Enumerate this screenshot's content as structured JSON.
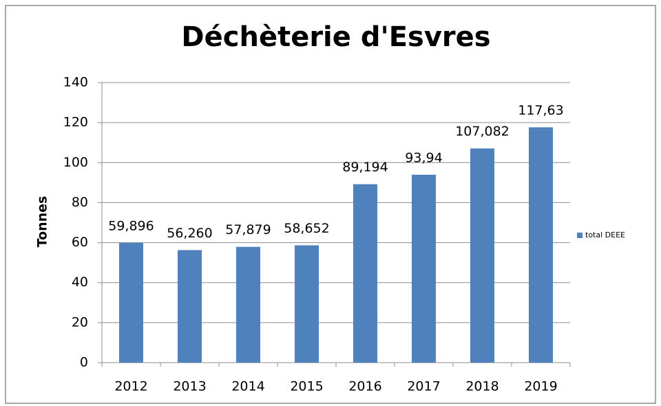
{
  "chart_data": {
    "type": "bar",
    "title": "Déchèterie d'Esvres",
    "y_label": "Tonnes",
    "categories": [
      "2012",
      "2013",
      "2014",
      "2015",
      "2016",
      "2017",
      "2018",
      "2019"
    ],
    "series": [
      {
        "name": "total DEEE",
        "color": "#4f81bd",
        "values": [
          59.896,
          56.26,
          57.879,
          58.652,
          89.194,
          93.94,
          107.082,
          117.63
        ],
        "value_labels": [
          "59,896",
          "56,260",
          "57,879",
          "58,652",
          "89,194",
          "93,94",
          "107,082",
          "117,63"
        ]
      }
    ],
    "ylim": [
      0,
      140
    ],
    "yticks": [
      0,
      20,
      40,
      60,
      80,
      100,
      120,
      140
    ],
    "grid": true,
    "legend": "right"
  }
}
